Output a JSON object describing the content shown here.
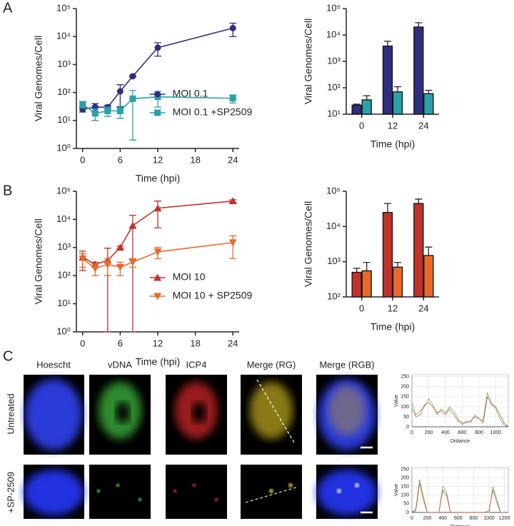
{
  "panel_labels": [
    "A",
    "B",
    "C"
  ],
  "microscopy": {
    "columns": [
      "Hoescht",
      "vDNA",
      "ICP4",
      "Merge (RG)",
      "Merge (RGB)"
    ],
    "rows": [
      "Untreated",
      "+SP-2509"
    ]
  },
  "chart_data": [
    {
      "type": "line",
      "log_y": true,
      "y_label": "Viral Genomes/Cell",
      "x_label": "Time (hpi)",
      "x": [
        0,
        2,
        4,
        6,
        8,
        12,
        24
      ],
      "xlim": [
        -1,
        25
      ],
      "xticks": [
        0,
        6,
        12,
        18,
        24
      ],
      "ylim": [
        1,
        100000
      ],
      "yticks": [
        {
          "value": 1,
          "label": "10⁰"
        },
        {
          "value": 10,
          "label": "10¹"
        },
        {
          "value": 100,
          "label": "10²"
        },
        {
          "value": 1000,
          "label": "10³"
        },
        {
          "value": 10000,
          "label": "10⁴"
        },
        {
          "value": 100000,
          "label": "10⁵"
        }
      ],
      "legend": "lower right",
      "series": [
        {
          "name": "MOI 0.1",
          "color": "#2e2f7f",
          "marker": "circle",
          "values": [
            25,
            30,
            30,
            110,
            380,
            4000,
            20000
          ],
          "errors": [
            5,
            10,
            5,
            80,
            30,
            2000,
            10000
          ]
        },
        {
          "name": "MOI 0.1 +SP2509",
          "color": "#2aa0a8",
          "marker": "square",
          "values": [
            38,
            18,
            22,
            22,
            60,
            70,
            62
          ],
          "errors": [
            10,
            8,
            8,
            10,
            58,
            40,
            20
          ]
        }
      ]
    },
    {
      "type": "bar",
      "log_y": true,
      "y_label": "Viral Genomes/Cell",
      "x_label": "Time (hpi)",
      "categories": [
        "0",
        "12",
        "24"
      ],
      "ylim": [
        10,
        100000
      ],
      "yticks": [
        {
          "value": 10,
          "label": "10¹"
        },
        {
          "value": 100,
          "label": "10²"
        },
        {
          "value": 1000,
          "label": "10³"
        },
        {
          "value": 10000,
          "label": "10⁴"
        },
        {
          "value": 100000,
          "label": "10⁵"
        }
      ],
      "series": [
        {
          "color": "#2e2f7f",
          "values": [
            22,
            3800,
            20000
          ],
          "errors": [
            2,
            2000,
            9000
          ]
        },
        {
          "color": "#2aa0a8",
          "values": [
            35,
            70,
            60
          ],
          "errors": [
            15,
            40,
            20
          ]
        }
      ]
    },
    {
      "type": "line",
      "log_y": true,
      "y_label": "Viral Genomes/Cell",
      "x_label": "Time (hpi)",
      "x": [
        0,
        2,
        4,
        6,
        8,
        12,
        24
      ],
      "xlim": [
        -1,
        25
      ],
      "xticks": [
        0,
        6,
        12,
        18,
        24
      ],
      "ylim": [
        1,
        100000
      ],
      "yticks": [
        {
          "value": 1,
          "label": "10⁰"
        },
        {
          "value": 10,
          "label": "10¹"
        },
        {
          "value": 100,
          "label": "10²"
        },
        {
          "value": 1000,
          "label": "10³"
        },
        {
          "value": 10000,
          "label": "10⁴"
        },
        {
          "value": 100000,
          "label": "10⁵"
        }
      ],
      "legend": "lower right",
      "series": [
        {
          "name": "MOI 10",
          "color": "#c0332a",
          "marker": "triangle-up",
          "values": [
            450,
            250,
            350,
            1000,
            6000,
            25000,
            45000
          ],
          "errors": [
            300,
            50,
            600,
            100,
            8000,
            20000,
            5000
          ]
        },
        {
          "name": "MOI 10 + SP2509",
          "color": "#e9692c",
          "marker": "triangle-down",
          "values": [
            400,
            180,
            250,
            200,
            300,
            700,
            1500
          ],
          "errors": [
            200,
            80,
            150,
            100,
            100,
            300,
            1100
          ]
        }
      ]
    },
    {
      "type": "bar",
      "log_y": true,
      "y_label": "Viral Genomes/Cell",
      "x_label": "Time (hpi)",
      "categories": [
        "0",
        "12",
        "24"
      ],
      "ylim": [
        100,
        100000
      ],
      "yticks": [
        {
          "value": 100,
          "label": "10²"
        },
        {
          "value": 1000,
          "label": "10³"
        },
        {
          "value": 10000,
          "label": "10⁴"
        },
        {
          "value": 100000,
          "label": "10⁵"
        }
      ],
      "series": [
        {
          "color": "#c0332a",
          "values": [
            500,
            25000,
            45000
          ],
          "errors": [
            150,
            20000,
            15000
          ]
        },
        {
          "color": "#e9692c",
          "values": [
            550,
            700,
            1500
          ],
          "errors": [
            400,
            250,
            1100
          ]
        }
      ]
    },
    {
      "type": "line",
      "log_y": false,
      "grid": true,
      "y_label": "Value",
      "x_label": "Distance",
      "x": [
        0,
        50,
        100,
        150,
        200,
        250,
        300,
        350,
        400,
        450,
        500,
        550,
        600,
        650,
        700,
        750,
        800,
        850,
        900,
        950,
        1000,
        1050,
        1100,
        1150
      ],
      "xlim": [
        0,
        1150
      ],
      "xticks": [
        0,
        200,
        400,
        600,
        800,
        1000
      ],
      "ylim": [
        0,
        260
      ],
      "yticks": [
        0,
        50,
        100,
        150,
        200,
        250
      ],
      "series": [
        {
          "color": "#3cb44b",
          "values": [
            120,
            60,
            80,
            100,
            140,
            110,
            60,
            90,
            70,
            100,
            80,
            40,
            10,
            30,
            20,
            60,
            40,
            30,
            170,
            120,
            90,
            40,
            10,
            0
          ]
        },
        {
          "color": "#d9342b",
          "values": [
            90,
            50,
            60,
            110,
            120,
            100,
            70,
            80,
            60,
            90,
            60,
            30,
            20,
            20,
            30,
            50,
            40,
            20,
            150,
            110,
            100,
            60,
            20,
            0
          ]
        }
      ]
    },
    {
      "type": "line",
      "log_y": false,
      "grid": true,
      "y_label": "Value",
      "x_label": "Distance",
      "x": [
        0,
        50,
        100,
        150,
        200,
        250,
        300,
        350,
        400,
        450,
        500,
        550,
        600,
        650,
        700,
        750,
        800,
        850,
        900,
        950,
        1000,
        1050,
        1100,
        1150,
        1200
      ],
      "xlim": [
        0,
        1250
      ],
      "xticks": [
        0,
        200,
        400,
        600,
        800,
        1000,
        1200
      ],
      "ylim": [
        0,
        260
      ],
      "yticks": [
        0,
        50,
        100,
        150,
        200,
        250
      ],
      "series": [
        {
          "color": "#3cb44b",
          "values": [
            0,
            20,
            190,
            90,
            0,
            0,
            0,
            0,
            150,
            120,
            0,
            0,
            0,
            0,
            0,
            0,
            0,
            0,
            0,
            0,
            0,
            150,
            80,
            0,
            0
          ]
        },
        {
          "color": "#d9342b",
          "values": [
            0,
            10,
            170,
            70,
            0,
            0,
            0,
            0,
            130,
            100,
            0,
            0,
            0,
            0,
            0,
            0,
            0,
            0,
            0,
            0,
            10,
            130,
            60,
            0,
            0
          ]
        }
      ]
    }
  ]
}
